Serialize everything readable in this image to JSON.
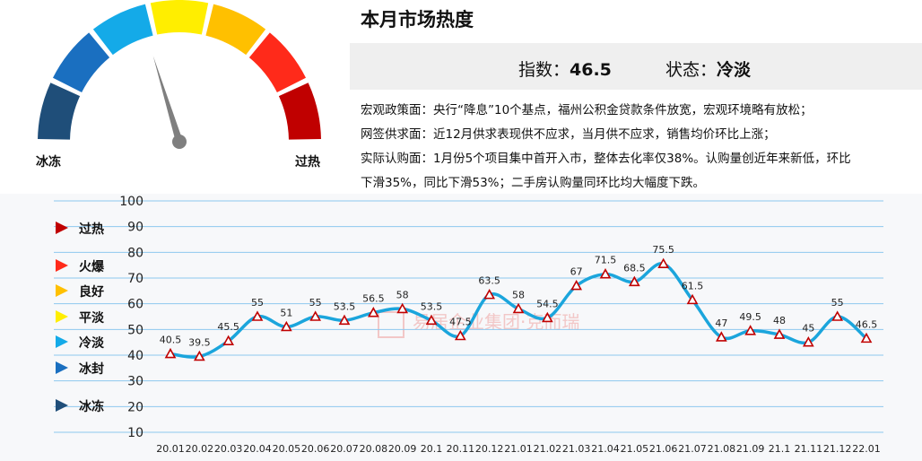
{
  "gauge": {
    "left_label": "冰冻",
    "right_label": "过热",
    "segment_colors": [
      "#1f4e79",
      "#1a6fc0",
      "#14aae8",
      "#ffee00",
      "#ffc000",
      "#ff2a1a",
      "#c00000"
    ],
    "needle_value": 46.5
  },
  "header": {
    "title": "本月市场热度",
    "index_label": "指数：",
    "index_value": "46.5",
    "status_label": "状态：",
    "status_value": "冷淡"
  },
  "description": [
    "宏观政策面：央行“降息”10个基点，福州公积金贷款条件放宽，宏观环境略有放松；",
    "网签供求面：近12月供求表现供不应求，当月供不应求，销售均价环比上涨；",
    "实际认购面：1月份5个项目集中首开入市，整体去化率仅38%。认购量创近年来新低，环比",
    "下滑35%，同比下滑53%；二手房认购量同环比均大幅度下跌。"
  ],
  "legend": [
    {
      "label": "过热",
      "color": "#c00000"
    },
    {
      "label": "火爆",
      "color": "#ff2a1a"
    },
    {
      "label": "良好",
      "color": "#ffc000"
    },
    {
      "label": "平淡",
      "color": "#ffee00"
    },
    {
      "label": "冷淡",
      "color": "#14aae8"
    },
    {
      "label": "冰封",
      "color": "#1a6fc0"
    },
    {
      "label": "冰冻",
      "color": "#1f4e79"
    }
  ],
  "watermark": "易居企业集团·克而瑞",
  "chart_data": {
    "type": "line",
    "x": [
      "20.01",
      "20.02",
      "20.03",
      "20.04",
      "20.05",
      "20.06",
      "20.07",
      "20.08",
      "20.09",
      "20.1",
      "20.11",
      "20.12",
      "21.01",
      "21.02",
      "21.03",
      "21.04",
      "21.05",
      "21.06",
      "21.07",
      "21.08",
      "21.09",
      "21.1",
      "21.11",
      "21.12",
      "22.01"
    ],
    "values": [
      40.5,
      39.5,
      45.5,
      55,
      51,
      55,
      53.5,
      56.5,
      58,
      53.5,
      47.5,
      63.5,
      58,
      54.5,
      67,
      71.5,
      68.5,
      75.5,
      61.5,
      47,
      49.5,
      48,
      45,
      55,
      46.5
    ],
    "labels": [
      "40.5",
      "39.5",
      "45.5",
      "55",
      "51",
      "55",
      "53.5",
      "56.5",
      "58",
      "53.5",
      "47.5",
      "63.5",
      "58",
      "54.5",
      "67",
      "71.5",
      "68.5",
      "75.5",
      "61.5",
      "47",
      "49.5",
      "48",
      "45",
      "55",
      "46.5"
    ],
    "yticks": [
      "10",
      "20",
      "30",
      "40",
      "50",
      "60",
      "70",
      "80",
      "90",
      "100"
    ],
    "ylim": [
      10,
      100
    ],
    "line_color": "#1ba5dc",
    "marker_color": "#c00000",
    "grid": true
  }
}
